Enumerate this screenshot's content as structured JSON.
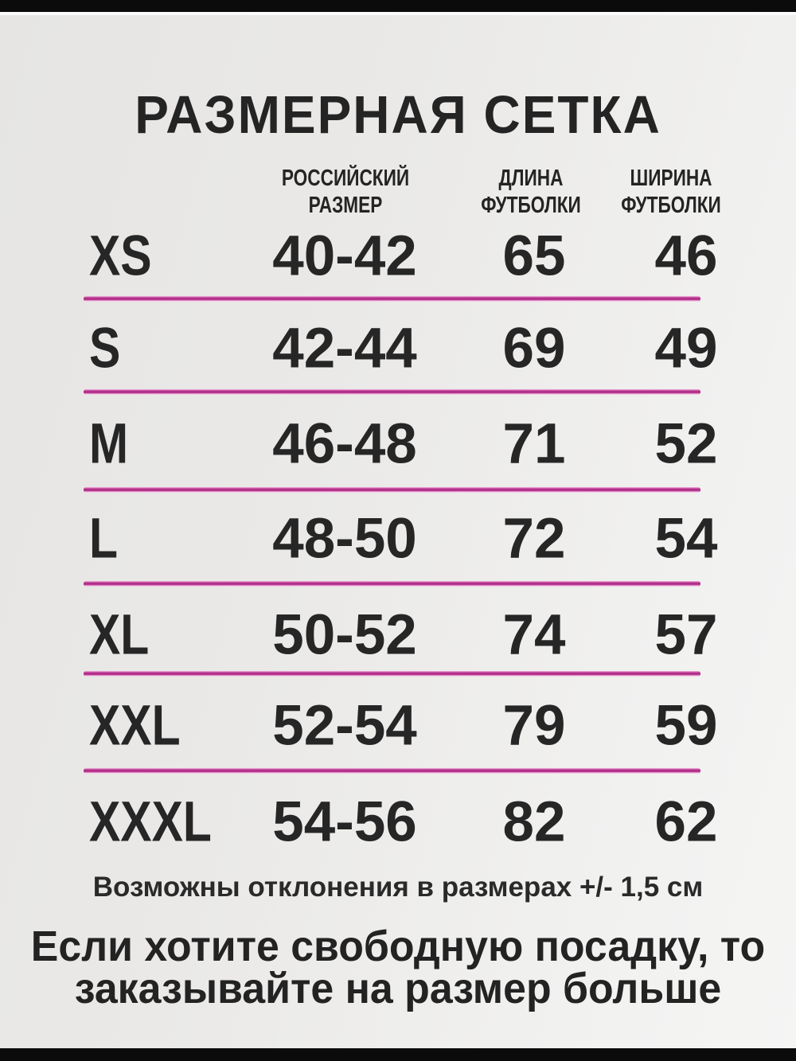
{
  "title": "РАЗМЕРНАЯ СЕТКА",
  "table": {
    "headers": {
      "ru_size": {
        "line1": "РОССИЙСКИЙ",
        "line2": "РАЗМЕР"
      },
      "length": {
        "line1": "ДЛИНА",
        "line2": "ФУТБОЛКИ"
      },
      "width": {
        "line1": "ШИРИНА",
        "line2": "ФУТБОЛКИ"
      }
    },
    "rows": [
      {
        "size": "XS",
        "russian_size": "40-42",
        "length_cm": "65",
        "width_cm": "46"
      },
      {
        "size": "S",
        "russian_size": "42-44",
        "length_cm": "69",
        "width_cm": "49"
      },
      {
        "size": "M",
        "russian_size": "46-48",
        "length_cm": "71",
        "width_cm": "52"
      },
      {
        "size": "L",
        "russian_size": "48-50",
        "length_cm": "72",
        "width_cm": "54"
      },
      {
        "size": "XL",
        "russian_size": "50-52",
        "length_cm": "74",
        "width_cm": "57"
      },
      {
        "size": "XXL",
        "russian_size": "52-54",
        "length_cm": "79",
        "width_cm": "59"
      },
      {
        "size": "XXXL",
        "russian_size": "54-56",
        "length_cm": "82",
        "width_cm": "62"
      }
    ]
  },
  "note": "Возможны отклонения в размерах +/- 1,5 см",
  "footer": {
    "line1": "Если хотите свободную посадку, то",
    "line2": "заказывайте на размер больше"
  },
  "colors": {
    "divider_pink": "#a82781",
    "text": "#242424",
    "background_gray": "#eae9e7",
    "bar_black": "#0b0b0b"
  }
}
